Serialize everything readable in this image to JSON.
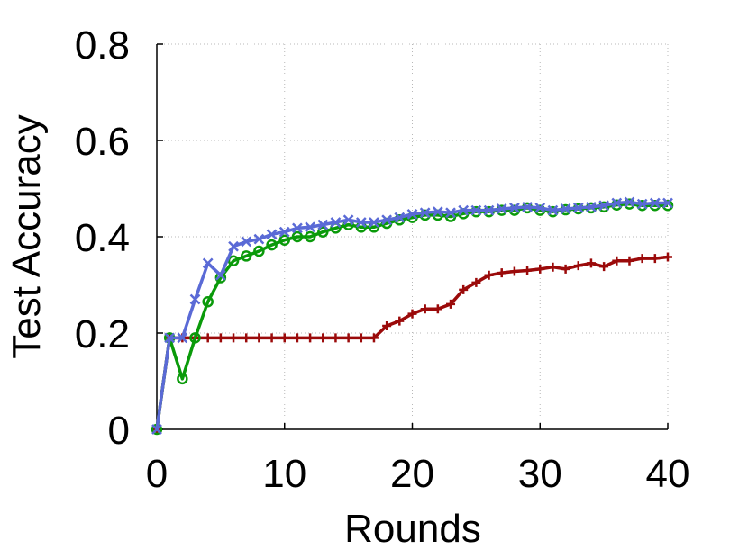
{
  "chart_data": {
    "type": "line",
    "title": "",
    "xlabel": "Rounds",
    "ylabel": "Test Accuracy",
    "xlim": [
      0,
      40
    ],
    "ylim": [
      0,
      0.8
    ],
    "xticks": [
      0,
      10,
      20,
      30,
      40
    ],
    "xtick_labels": [
      "0",
      "10",
      "20",
      "30",
      "40"
    ],
    "yticks": [
      0,
      0.2,
      0.4,
      0.6,
      0.8
    ],
    "ytick_labels": [
      "0",
      "0.2",
      "0.4",
      "0.6",
      "0.8"
    ],
    "grid": true,
    "legend": "none",
    "x": [
      0,
      1,
      2,
      3,
      4,
      5,
      6,
      7,
      8,
      9,
      10,
      11,
      12,
      13,
      14,
      15,
      16,
      17,
      18,
      19,
      20,
      21,
      22,
      23,
      24,
      25,
      26,
      27,
      28,
      29,
      30,
      31,
      32,
      33,
      34,
      35,
      36,
      37,
      38,
      39,
      40
    ],
    "series": [
      {
        "color": "#9b0a0a",
        "marker": "plus",
        "values": [
          0.0,
          0.19,
          0.19,
          0.19,
          0.19,
          0.19,
          0.19,
          0.19,
          0.19,
          0.19,
          0.19,
          0.19,
          0.19,
          0.19,
          0.19,
          0.19,
          0.19,
          0.19,
          0.215,
          0.225,
          0.24,
          0.25,
          0.25,
          0.26,
          0.29,
          0.305,
          0.32,
          0.325,
          0.328,
          0.33,
          0.333,
          0.337,
          0.333,
          0.34,
          0.345,
          0.338,
          0.35,
          0.35,
          0.355,
          0.355,
          0.358
        ]
      },
      {
        "color": "#0a9a0a",
        "marker": "circle",
        "values": [
          0.0,
          0.19,
          0.105,
          0.19,
          0.265,
          0.315,
          0.35,
          0.36,
          0.37,
          0.383,
          0.393,
          0.4,
          0.4,
          0.41,
          0.418,
          0.425,
          0.42,
          0.42,
          0.428,
          0.435,
          0.44,
          0.445,
          0.445,
          0.442,
          0.448,
          0.452,
          0.452,
          0.455,
          0.455,
          0.46,
          0.455,
          0.452,
          0.456,
          0.458,
          0.46,
          0.462,
          0.466,
          0.468,
          0.465,
          0.465,
          0.465
        ]
      },
      {
        "color": "#5a6ad6",
        "marker": "x",
        "values": [
          0.0,
          0.19,
          0.19,
          0.27,
          0.345,
          0.32,
          0.38,
          0.39,
          0.395,
          0.405,
          0.41,
          0.418,
          0.42,
          0.425,
          0.43,
          0.435,
          0.43,
          0.43,
          0.435,
          0.44,
          0.447,
          0.45,
          0.452,
          0.45,
          0.455,
          0.455,
          0.455,
          0.458,
          0.46,
          0.462,
          0.46,
          0.455,
          0.458,
          0.46,
          0.462,
          0.465,
          0.47,
          0.472,
          0.468,
          0.47,
          0.47
        ]
      }
    ]
  }
}
